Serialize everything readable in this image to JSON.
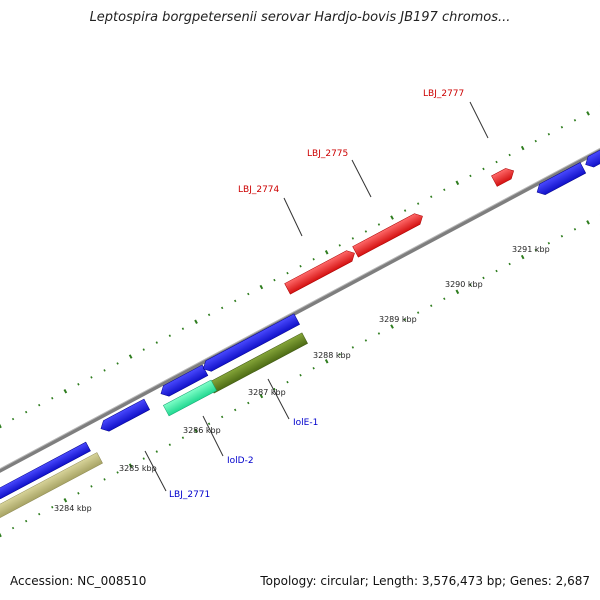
{
  "title": "Leptospira borgpetersenii serovar Hardjo-bovis JB197 chromos...",
  "footer": {
    "accession": "Accession: NC_008510",
    "summary": "Topology: circular; Length: 3,576,473 bp; Genes: 2,687"
  },
  "colors": {
    "backbone": "#8a8a8a",
    "tick": "#2e7d1e",
    "forward_gene": "#e81c1c",
    "reverse_gene": "#1616d8",
    "feature_green": "#5c7a1c",
    "feature_cyan": "#33e8a0",
    "feature_tan": "#bdb978",
    "forward_label": "#cc0000",
    "reverse_label": "#0000cc"
  },
  "kbp_labels": [
    "3284 kbp",
    "3285 kbp",
    "3286 kbp",
    "3287 kbp",
    "3288 kbp",
    "3289 kbp",
    "3290 kbp",
    "3291 kbp"
  ],
  "gene_labels_forward": [
    "LBJ_2774",
    "LBJ_2775",
    "LBJ_2777"
  ],
  "gene_labels_reverse": [
    "LBJ_2771",
    "IolD-2",
    "IolE-1"
  ]
}
